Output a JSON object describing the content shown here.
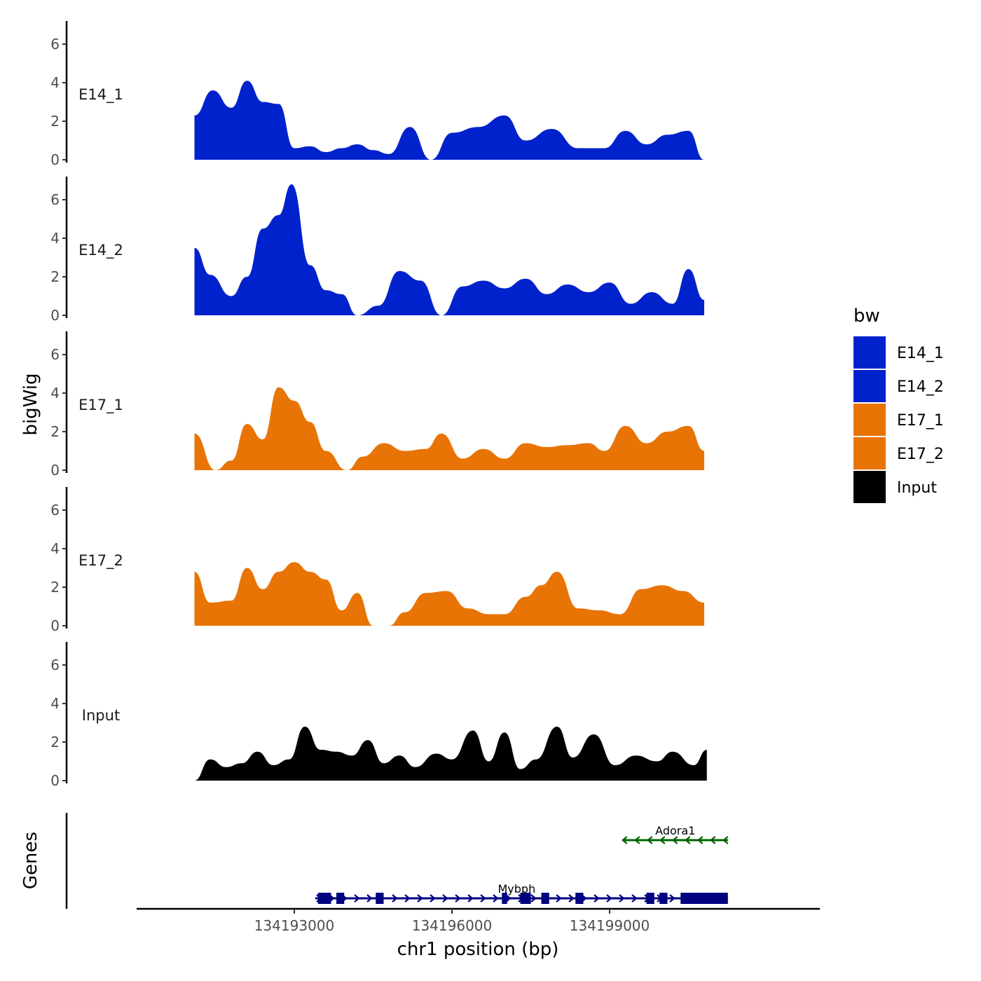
{
  "chart_data": {
    "type": "area",
    "title": "",
    "ylabel": "bigWig",
    "xlabel": "chr1 position (bp)",
    "xlim": [
      134190000,
      134203000
    ],
    "ylim": [
      0,
      7
    ],
    "yticks": [
      0,
      2,
      4,
      6
    ],
    "xticks": [
      134193000,
      134196000,
      134199000
    ],
    "xtick_labels": [
      "134193000",
      "134196000",
      "134199000"
    ],
    "legend_title": "bw",
    "legend_position": "right",
    "series": [
      {
        "name": "E14_1",
        "label": "E14_1",
        "color": "#0022CC",
        "x": [
          134191100,
          134191450,
          134191800,
          134192100,
          134192400,
          134192700,
          134193000,
          134193300,
          134193600,
          134193900,
          134194200,
          134194500,
          134194800,
          134195200,
          134195600,
          134196000,
          134196500,
          134197000,
          134197400,
          134197900,
          134198400,
          134198900,
          134199300,
          134199700,
          134200100,
          134200500,
          134200800
        ],
        "values": [
          2.3,
          3.6,
          2.7,
          4.1,
          3.0,
          2.9,
          0.6,
          0.7,
          0.4,
          0.6,
          0.8,
          0.5,
          0.3,
          1.7,
          0.0,
          1.4,
          1.7,
          2.3,
          1.0,
          1.6,
          0.6,
          0.6,
          1.5,
          0.8,
          1.3,
          1.5,
          0.0
        ]
      },
      {
        "name": "E14_2",
        "label": "E14_2",
        "color": "#0022CC",
        "x": [
          134191100,
          134191400,
          134191800,
          134192100,
          134192400,
          134192700,
          134192950,
          134193300,
          134193600,
          134193900,
          134194200,
          134194600,
          134195000,
          134195400,
          134195800,
          134196200,
          134196600,
          134197000,
          134197400,
          134197800,
          134198200,
          134198600,
          134199000,
          134199400,
          134199800,
          134200200,
          134200500,
          134200800
        ],
        "values": [
          3.5,
          2.1,
          1.0,
          2.0,
          4.5,
          5.2,
          6.8,
          2.6,
          1.3,
          1.1,
          0.0,
          0.5,
          2.3,
          1.8,
          0.0,
          1.5,
          1.8,
          1.4,
          1.9,
          1.1,
          1.6,
          1.2,
          1.7,
          0.6,
          1.2,
          0.6,
          2.4,
          0.8
        ]
      },
      {
        "name": "E17_1",
        "label": "E17_1",
        "color": "#E87405",
        "x": [
          134191100,
          134191500,
          134191800,
          134192100,
          134192400,
          134192700,
          134193000,
          134193300,
          134193600,
          134194000,
          134194300,
          134194700,
          134195100,
          134195500,
          134195800,
          134196200,
          134196600,
          134197000,
          134197400,
          134197800,
          134198200,
          134198600,
          134198900,
          134199300,
          134199700,
          134200100,
          134200500,
          134200800
        ],
        "values": [
          1.9,
          0.0,
          0.5,
          2.4,
          1.6,
          4.3,
          3.6,
          2.5,
          1.0,
          0.0,
          0.7,
          1.4,
          1.0,
          1.1,
          1.9,
          0.6,
          1.1,
          0.6,
          1.4,
          1.2,
          1.3,
          1.4,
          1.0,
          2.3,
          1.4,
          2.0,
          2.3,
          1.0
        ]
      },
      {
        "name": "E17_2",
        "label": "E17_2",
        "color": "#E87405",
        "x": [
          134191100,
          134191400,
          134191800,
          134192100,
          134192400,
          134192700,
          134193000,
          134193300,
          134193600,
          134193900,
          134194200,
          134194500,
          134194800,
          134195100,
          134195500,
          134195900,
          134196300,
          134196700,
          134197000,
          134197400,
          134197700,
          134198000,
          134198400,
          134198800,
          134199200,
          134199600,
          134200000,
          134200400,
          134200800
        ],
        "values": [
          2.8,
          1.2,
          1.3,
          3.0,
          1.9,
          2.8,
          3.3,
          2.8,
          2.4,
          0.8,
          1.7,
          0.0,
          0.0,
          0.7,
          1.7,
          1.8,
          0.9,
          0.6,
          0.6,
          1.5,
          2.1,
          2.8,
          0.9,
          0.8,
          0.6,
          1.9,
          2.1,
          1.8,
          1.2
        ]
      },
      {
        "name": "Input",
        "label": "Input",
        "color": "#000000",
        "x": [
          134191100,
          134191400,
          134191700,
          134192000,
          134192300,
          134192600,
          134192900,
          134193200,
          134193500,
          134193800,
          134194100,
          134194400,
          134194700,
          134195000,
          134195300,
          134195700,
          134196000,
          134196400,
          134196700,
          134197000,
          134197300,
          134197600,
          134198000,
          134198300,
          134198700,
          134199100,
          134199500,
          134199900,
          134200200,
          134200600,
          134200850
        ],
        "values": [
          0.0,
          1.1,
          0.7,
          0.9,
          1.5,
          0.8,
          1.1,
          2.8,
          1.6,
          1.5,
          1.3,
          2.1,
          0.9,
          1.3,
          0.7,
          1.4,
          1.1,
          2.6,
          1.0,
          2.5,
          0.6,
          1.1,
          2.8,
          1.2,
          2.4,
          0.8,
          1.3,
          1.0,
          1.5,
          0.8,
          1.6
        ]
      }
    ],
    "genes": {
      "title": "Genes",
      "items": [
        {
          "name": "Adora1",
          "strand": "-",
          "start": 134199250,
          "end": 134201250,
          "color": "#006400",
          "exons": []
        },
        {
          "name": "Mybph",
          "strand": "+",
          "start": 134193400,
          "end": 134201250,
          "color": "#000080",
          "exons": [
            [
              134193450,
              134193700
            ],
            [
              134193800,
              134193950
            ],
            [
              134194550,
              134194700
            ],
            [
              134196950,
              134197050
            ],
            [
              134197300,
              134197500
            ],
            [
              134197700,
              134197850
            ],
            [
              134198350,
              134198500
            ],
            [
              134199700,
              134199850
            ],
            [
              134199950,
              134200100
            ],
            [
              134200350,
              134200800
            ],
            [
              134200800,
              134201250
            ]
          ]
        }
      ]
    }
  }
}
